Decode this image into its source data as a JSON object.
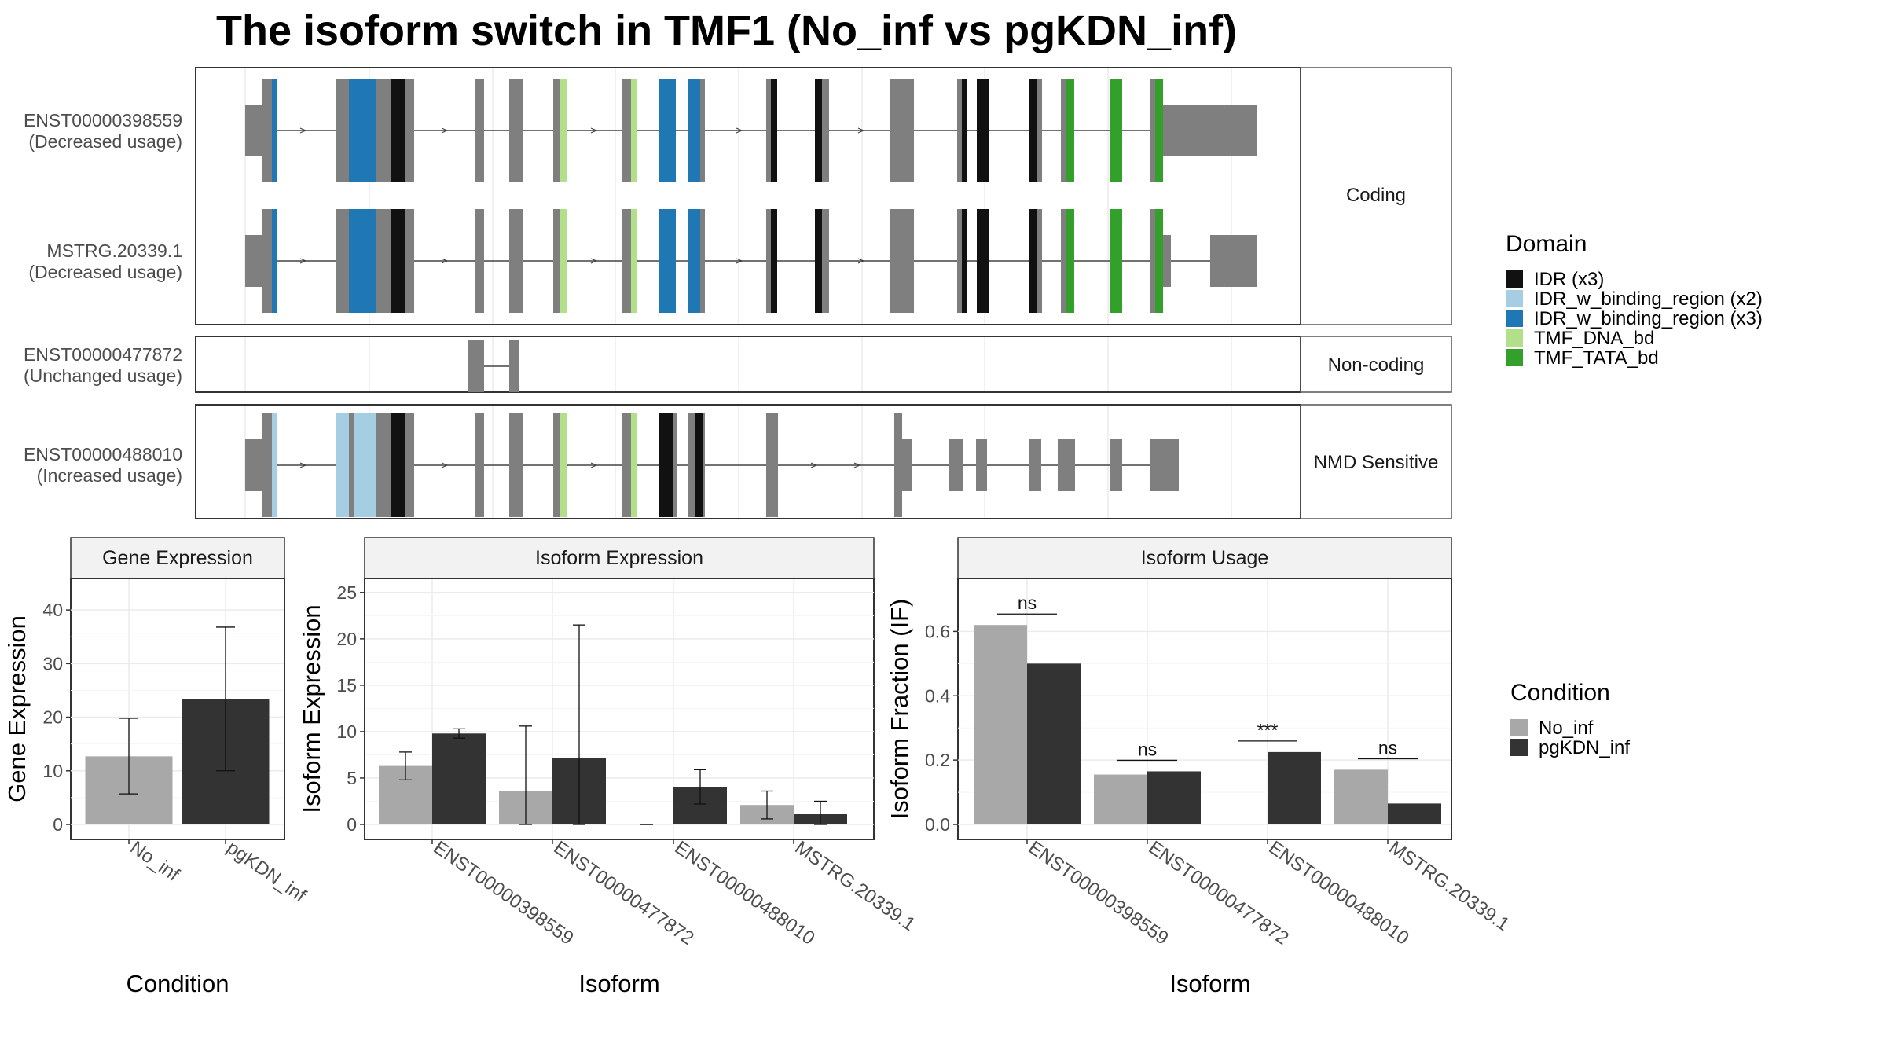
{
  "title": "The isoform switch in TMF1 (No_inf vs pgKDN_inf)",
  "colors": {
    "exon": "#7f7f7f",
    "intron": "#444444",
    "no_inf": "#a8a8a8",
    "pgkdn_inf": "#333333",
    "idr": "#111111",
    "idr_wb2": "#a6cee3",
    "idr_wb3": "#1f78b4",
    "tmf_dna": "#b2df8a",
    "tmf_tata": "#33a02c",
    "grid": "#ebebeb",
    "strip": "#f2f2f2",
    "frame": "#333333"
  },
  "structure": {
    "facets": [
      "Coding",
      "Non-coding",
      "NMD Sensitive"
    ],
    "isoforms": [
      {
        "id": "ENST00000398559",
        "usage": "(Decreased usage)",
        "facet": 0
      },
      {
        "id": "MSTRG.20339.1",
        "usage": "(Decreased usage)",
        "facet": 0
      },
      {
        "id": "ENST00000477872",
        "usage": "(Unchanged usage)",
        "facet": 1
      },
      {
        "id": "ENST00000488010",
        "usage": "(Increased usage)",
        "facet": 2
      }
    ]
  },
  "domain_legend": {
    "title": "Domain",
    "items": [
      {
        "label": "IDR (x3)",
        "color": "#111111"
      },
      {
        "label": "IDR_w_binding_region (x2)",
        "color": "#a6cee3"
      },
      {
        "label": "IDR_w_binding_region (x3)",
        "color": "#1f78b4"
      },
      {
        "label": "TMF_DNA_bd",
        "color": "#b2df8a"
      },
      {
        "label": "TMF_TATA_bd",
        "color": "#33a02c"
      }
    ]
  },
  "condition_legend": {
    "title": "Condition",
    "items": [
      {
        "label": "No_inf",
        "color": "#a8a8a8"
      },
      {
        "label": "pgKDN_inf",
        "color": "#333333"
      }
    ]
  },
  "chart_data": [
    {
      "type": "bar",
      "title": "Gene Expression",
      "xlabel": "Condition",
      "ylabel": "Gene Expression",
      "ylim": [
        0,
        45
      ],
      "yticks": [
        0,
        10,
        20,
        30,
        40
      ],
      "categories": [
        "No_inf",
        "pgKDN_inf"
      ],
      "values": [
        12.7,
        23.4
      ],
      "error_low": [
        5.7,
        10.0
      ],
      "error_high": [
        19.8,
        36.8
      ]
    },
    {
      "type": "bar",
      "title": "Isoform Expression",
      "xlabel": "Isoform",
      "ylabel": "Isoform Expression",
      "ylim": [
        0,
        26
      ],
      "yticks": [
        0,
        5,
        10,
        15,
        20,
        25
      ],
      "categories": [
        "ENST00000398559",
        "ENST00000477872",
        "ENST00000488010",
        "MSTRG.20339.1"
      ],
      "series": [
        {
          "name": "No_inf",
          "values": [
            6.3,
            3.6,
            0.0,
            2.1
          ],
          "error_low": [
            4.8,
            0.0,
            0.0,
            0.6
          ],
          "error_high": [
            7.8,
            10.6,
            0.0,
            3.6
          ]
        },
        {
          "name": "pgKDN_inf",
          "values": [
            9.8,
            7.2,
            4.0,
            1.1
          ],
          "error_low": [
            9.3,
            0.0,
            2.2,
            0.0
          ],
          "error_high": [
            10.3,
            21.5,
            5.9,
            2.5
          ]
        }
      ]
    },
    {
      "type": "bar",
      "title": "Isoform Usage",
      "xlabel": "Isoform",
      "ylabel": "Isoform Fraction (IF)",
      "ylim": [
        0,
        0.75
      ],
      "yticks": [
        "0.0",
        "0.2",
        "0.4",
        "0.6"
      ],
      "categories": [
        "ENST00000398559",
        "ENST00000477872",
        "ENST00000488010",
        "MSTRG.20339.1"
      ],
      "series": [
        {
          "name": "No_inf",
          "values": [
            0.62,
            0.155,
            0.0,
            0.17
          ]
        },
        {
          "name": "pgKDN_inf",
          "values": [
            0.5,
            0.165,
            0.225,
            0.065
          ]
        }
      ],
      "significance": [
        "ns",
        "ns",
        "***",
        "ns"
      ]
    }
  ]
}
